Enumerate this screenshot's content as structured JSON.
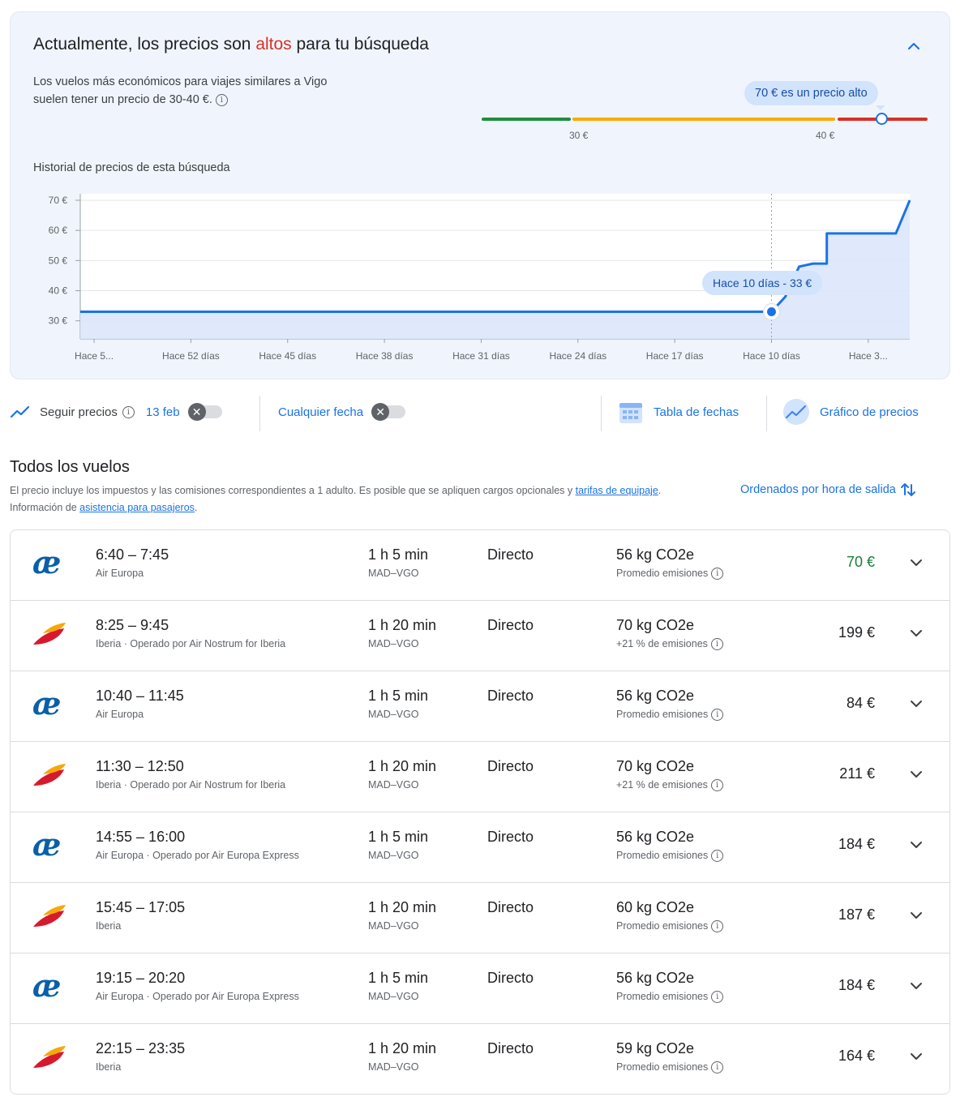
{
  "insights": {
    "headline_pre": "Actualmente, los precios son ",
    "headline_emph": "altos",
    "headline_post": " para tu búsqueda",
    "desc_line1": "Los vuelos más económicos para viajes similares a Vigo",
    "desc_line2": "suelen tener un precio de 30-40 €.",
    "info_glyph": "i",
    "price_pill": "70 € es un precio alto",
    "range_low_label": "30 €",
    "range_high_label": "40 €",
    "range_colors": {
      "low": "#1e8e3e",
      "typical": "#f9ab00",
      "high": "#d93025"
    },
    "current_price": 70
  },
  "history": {
    "title": "Historial de precios de esta búsqueda",
    "tooltip": "Hace 10 días - 33 €"
  },
  "chart_data": {
    "type": "area",
    "title": "Historial de precios de esta búsqueda",
    "xlabel": "",
    "ylabel": "",
    "unit": "€",
    "days_ago_range": [
      60,
      0
    ],
    "ylim": [
      24,
      70
    ],
    "y_ticks": [
      {
        "value": 70,
        "label": "70 €"
      },
      {
        "value": 60,
        "label": "60 €"
      },
      {
        "value": 50,
        "label": "50 €"
      },
      {
        "value": 40,
        "label": "40 €"
      },
      {
        "value": 30,
        "label": "30 €"
      }
    ],
    "x_ticks": [
      {
        "days_ago": 59,
        "label": "Hace 5..."
      },
      {
        "days_ago": 52,
        "label": "Hace 52 días"
      },
      {
        "days_ago": 45,
        "label": "Hace 45 días"
      },
      {
        "days_ago": 38,
        "label": "Hace 38 días"
      },
      {
        "days_ago": 31,
        "label": "Hace 31 días"
      },
      {
        "days_ago": 24,
        "label": "Hace 24 días"
      },
      {
        "days_ago": 17,
        "label": "Hace 17 días"
      },
      {
        "days_ago": 10,
        "label": "Hace 10 días"
      },
      {
        "days_ago": 3,
        "label": "Hace 3..."
      }
    ],
    "series": [
      {
        "name": "Precio",
        "points": [
          {
            "days_ago": 60,
            "price": 33
          },
          {
            "days_ago": 10,
            "price": 33
          },
          {
            "days_ago": 9,
            "price": 38
          },
          {
            "days_ago": 8,
            "price": 48
          },
          {
            "days_ago": 7,
            "price": 49
          },
          {
            "days_ago": 6,
            "price": 49
          },
          {
            "days_ago": 6,
            "price": 59
          },
          {
            "days_ago": 1,
            "price": 59
          },
          {
            "days_ago": 0,
            "price": 70
          }
        ]
      }
    ],
    "highlight": {
      "days_ago": 10,
      "price": 33
    },
    "colors": {
      "line": "#1a73e8",
      "fill": "#dbe7fb"
    }
  },
  "toolbar": {
    "track_label": "Seguir precios",
    "track_date": "13 feb",
    "any_date": "Cualquier fecha",
    "toggle_off_glyph": "✕",
    "date_grid": "Tabla de fechas",
    "price_graph": "Gráfico de precios"
  },
  "all_flights": {
    "title": "Todos los vuelos",
    "note_pre": "El precio incluye los impuestos y las comisiones correspondientes a 1 adulto. Es posible que se apliquen cargos opcionales y ",
    "note_link1": "tarifas de equipaje",
    "note_mid": ". Información de ",
    "note_link2": "asistencia para pasajeros",
    "note_post": ".",
    "sort_label": "Ordenados por hora de salida"
  },
  "flights": [
    {
      "logo": "ae",
      "times": "6:40 – 7:45",
      "airline": "Air Europa",
      "duration": "1 h 5 min",
      "route": "MAD–VGO",
      "stops": "Directo",
      "co2": "56 kg CO2e",
      "emissions": "Promedio emisiones",
      "price": "70 €",
      "cheapest": true
    },
    {
      "logo": "ib",
      "times": "8:25 – 9:45",
      "airline": "Iberia · Operado por Air Nostrum for Iberia",
      "duration": "1 h 20 min",
      "route": "MAD–VGO",
      "stops": "Directo",
      "co2": "70 kg CO2e",
      "emissions": "+21 % de emisiones",
      "price": "199 €",
      "cheapest": false
    },
    {
      "logo": "ae",
      "times": "10:40 – 11:45",
      "airline": "Air Europa",
      "duration": "1 h 5 min",
      "route": "MAD–VGO",
      "stops": "Directo",
      "co2": "56 kg CO2e",
      "emissions": "Promedio emisiones",
      "price": "84 €",
      "cheapest": false
    },
    {
      "logo": "ib",
      "times": "11:30 – 12:50",
      "airline": "Iberia · Operado por Air Nostrum for Iberia",
      "duration": "1 h 20 min",
      "route": "MAD–VGO",
      "stops": "Directo",
      "co2": "70 kg CO2e",
      "emissions": "+21 % de emisiones",
      "price": "211 €",
      "cheapest": false
    },
    {
      "logo": "ae",
      "times": "14:55 – 16:00",
      "airline": "Air Europa · Operado por Air Europa Express",
      "duration": "1 h 5 min",
      "route": "MAD–VGO",
      "stops": "Directo",
      "co2": "56 kg CO2e",
      "emissions": "Promedio emisiones",
      "price": "184 €",
      "cheapest": false
    },
    {
      "logo": "ib",
      "times": "15:45 – 17:05",
      "airline": "Iberia",
      "duration": "1 h 20 min",
      "route": "MAD–VGO",
      "stops": "Directo",
      "co2": "60 kg CO2e",
      "emissions": "Promedio emisiones",
      "price": "187 €",
      "cheapest": false
    },
    {
      "logo": "ae",
      "times": "19:15 – 20:20",
      "airline": "Air Europa · Operado por Air Europa Express",
      "duration": "1 h 5 min",
      "route": "MAD–VGO",
      "stops": "Directo",
      "co2": "56 kg CO2e",
      "emissions": "Promedio emisiones",
      "price": "184 €",
      "cheapest": false
    },
    {
      "logo": "ib",
      "times": "22:15 – 23:35",
      "airline": "Iberia",
      "duration": "1 h 20 min",
      "route": "MAD–VGO",
      "stops": "Directo",
      "co2": "59 kg CO2e",
      "emissions": "Promedio emisiones",
      "price": "164 €",
      "cheapest": false
    }
  ]
}
